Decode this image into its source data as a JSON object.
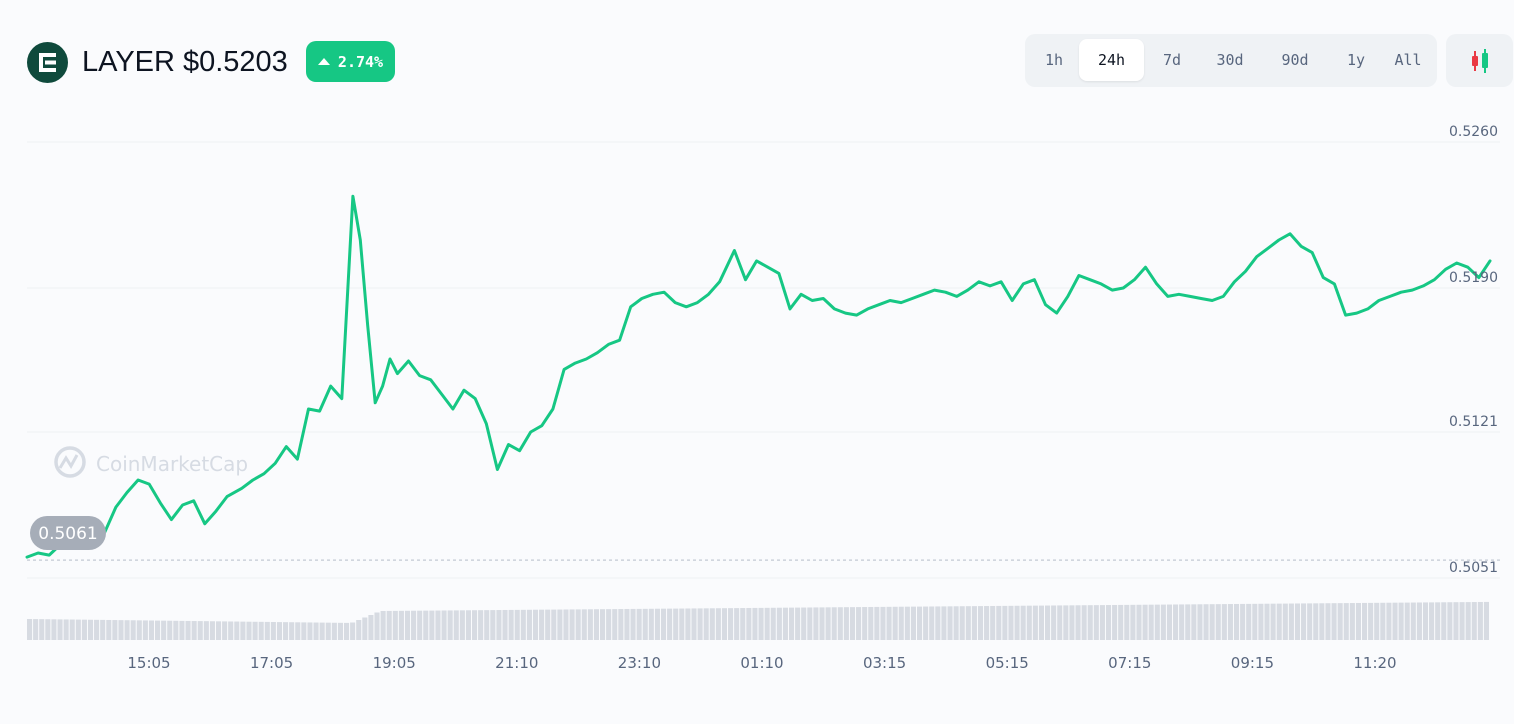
{
  "header": {
    "symbol": "LAYER",
    "price": "$0.5203",
    "change": "2.74%",
    "logo_icon": "layer-logo-icon"
  },
  "time_tabs": [
    {
      "label": "1h",
      "active": false
    },
    {
      "label": "24h",
      "active": true
    },
    {
      "label": "7d",
      "active": false
    },
    {
      "label": "30d",
      "active": false
    },
    {
      "label": "90d",
      "active": false
    },
    {
      "label": "1y",
      "active": false
    },
    {
      "label": "All",
      "active": false
    }
  ],
  "candle_button_icon": "candlestick-icon",
  "watermark": "CoinMarketCap",
  "colors": {
    "line": "#16c784",
    "badge": "#16c784",
    "logo": "#0f4a3c",
    "candle_up": "#16c784",
    "candle_down": "#ea3943"
  },
  "chart_data": {
    "type": "line",
    "title": "",
    "xlabel": "",
    "ylabel": "",
    "ylim": [
      0.5051,
      0.526
    ],
    "y_ticks": [
      "0.5260",
      "0.5190",
      "0.5121",
      "0.5051"
    ],
    "x_ticks": [
      "15:05",
      "17:05",
      "19:05",
      "21:10",
      "23:10",
      "01:10",
      "03:15",
      "05:15",
      "07:15",
      "09:15",
      "11:20"
    ],
    "open_price_label": "0.5061",
    "open_price": 0.5061,
    "x_range_hours": [
      13.05,
      12.85
    ],
    "series": [
      {
        "points": [
          [
            0.0,
            0.5061
          ],
          [
            0.15,
            0.5063
          ],
          [
            0.3,
            0.5062
          ],
          [
            0.45,
            0.5067
          ],
          [
            0.6,
            0.5074
          ],
          [
            0.75,
            0.5073
          ],
          [
            0.9,
            0.5071
          ],
          [
            1.05,
            0.5073
          ],
          [
            1.2,
            0.5085
          ],
          [
            1.35,
            0.5092
          ],
          [
            1.5,
            0.5098
          ],
          [
            1.65,
            0.5096
          ],
          [
            1.8,
            0.5087
          ],
          [
            1.95,
            0.5079
          ],
          [
            2.1,
            0.5086
          ],
          [
            2.25,
            0.5088
          ],
          [
            2.4,
            0.5077
          ],
          [
            2.55,
            0.5083
          ],
          [
            2.7,
            0.509
          ],
          [
            2.9,
            0.5094
          ],
          [
            3.05,
            0.5098
          ],
          [
            3.2,
            0.5101
          ],
          [
            3.35,
            0.5106
          ],
          [
            3.5,
            0.5114
          ],
          [
            3.65,
            0.5108
          ],
          [
            3.8,
            0.5132
          ],
          [
            3.95,
            0.5131
          ],
          [
            4.1,
            0.5143
          ],
          [
            4.25,
            0.5137
          ],
          [
            4.4,
            0.5234
          ],
          [
            4.5,
            0.5213
          ],
          [
            4.6,
            0.5172
          ],
          [
            4.7,
            0.5135
          ],
          [
            4.8,
            0.5143
          ],
          [
            4.9,
            0.5156
          ],
          [
            5.0,
            0.5149
          ],
          [
            5.15,
            0.5155
          ],
          [
            5.3,
            0.5148
          ],
          [
            5.45,
            0.5146
          ],
          [
            5.6,
            0.5139
          ],
          [
            5.75,
            0.5132
          ],
          [
            5.9,
            0.5141
          ],
          [
            6.05,
            0.5137
          ],
          [
            6.2,
            0.5125
          ],
          [
            6.35,
            0.5103
          ],
          [
            6.5,
            0.5115
          ],
          [
            6.65,
            0.5112
          ],
          [
            6.8,
            0.5121
          ],
          [
            6.95,
            0.5124
          ],
          [
            7.1,
            0.5132
          ],
          [
            7.25,
            0.5151
          ],
          [
            7.4,
            0.5154
          ],
          [
            7.55,
            0.5156
          ],
          [
            7.7,
            0.5159
          ],
          [
            7.85,
            0.5163
          ],
          [
            8.0,
            0.5165
          ],
          [
            8.15,
            0.5181
          ],
          [
            8.3,
            0.5185
          ],
          [
            8.45,
            0.5187
          ],
          [
            8.6,
            0.5188
          ],
          [
            8.75,
            0.5183
          ],
          [
            8.9,
            0.5181
          ],
          [
            9.05,
            0.5183
          ],
          [
            9.2,
            0.5187
          ],
          [
            9.35,
            0.5193
          ],
          [
            9.55,
            0.5208
          ],
          [
            9.7,
            0.5194
          ],
          [
            9.85,
            0.5203
          ],
          [
            10.0,
            0.52
          ],
          [
            10.15,
            0.5197
          ],
          [
            10.3,
            0.518
          ],
          [
            10.45,
            0.5187
          ],
          [
            10.6,
            0.5184
          ],
          [
            10.75,
            0.5185
          ],
          [
            10.9,
            0.518
          ],
          [
            11.05,
            0.5178
          ],
          [
            11.2,
            0.5177
          ],
          [
            11.35,
            0.518
          ],
          [
            11.5,
            0.5182
          ],
          [
            11.65,
            0.5184
          ],
          [
            11.8,
            0.5183
          ],
          [
            11.95,
            0.5185
          ],
          [
            12.1,
            0.5187
          ],
          [
            12.25,
            0.5189
          ],
          [
            12.4,
            0.5188
          ],
          [
            12.55,
            0.5186
          ],
          [
            12.7,
            0.5189
          ],
          [
            12.85,
            0.5193
          ],
          [
            13.0,
            0.5191
          ],
          [
            13.15,
            0.5193
          ],
          [
            13.3,
            0.5184
          ],
          [
            13.45,
            0.5192
          ],
          [
            13.6,
            0.5194
          ],
          [
            13.75,
            0.5182
          ],
          [
            13.9,
            0.5178
          ],
          [
            14.05,
            0.5186
          ],
          [
            14.2,
            0.5196
          ],
          [
            14.35,
            0.5194
          ],
          [
            14.5,
            0.5192
          ],
          [
            14.65,
            0.5189
          ],
          [
            14.8,
            0.519
          ],
          [
            14.95,
            0.5194
          ],
          [
            15.1,
            0.52
          ],
          [
            15.25,
            0.5192
          ],
          [
            15.4,
            0.5186
          ],
          [
            15.55,
            0.5187
          ],
          [
            15.7,
            0.5186
          ],
          [
            15.85,
            0.5185
          ],
          [
            16.0,
            0.5184
          ],
          [
            16.15,
            0.5186
          ],
          [
            16.3,
            0.5193
          ],
          [
            16.45,
            0.5198
          ],
          [
            16.6,
            0.5205
          ],
          [
            16.75,
            0.5209
          ],
          [
            16.9,
            0.5213
          ],
          [
            17.05,
            0.5216
          ],
          [
            17.2,
            0.521
          ],
          [
            17.35,
            0.5207
          ],
          [
            17.5,
            0.5195
          ],
          [
            17.65,
            0.5192
          ],
          [
            17.8,
            0.5177
          ],
          [
            17.95,
            0.5178
          ],
          [
            18.1,
            0.518
          ],
          [
            18.25,
            0.5184
          ],
          [
            18.4,
            0.5186
          ],
          [
            18.55,
            0.5188
          ],
          [
            18.7,
            0.5189
          ],
          [
            18.85,
            0.5191
          ],
          [
            19.0,
            0.5194
          ],
          [
            19.15,
            0.5199
          ],
          [
            19.3,
            0.5202
          ],
          [
            19.45,
            0.52
          ],
          [
            19.6,
            0.5195
          ],
          [
            19.75,
            0.5203
          ]
        ]
      }
    ]
  }
}
